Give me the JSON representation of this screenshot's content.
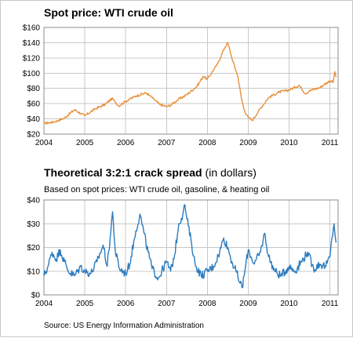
{
  "chart_data": [
    {
      "type": "line",
      "title": "Spot price: WTI crude oil",
      "subtitle": "",
      "xlabel": "",
      "ylabel": "",
      "x_tick_labels": [
        "2004",
        "2005",
        "2006",
        "2007",
        "2008",
        "2009",
        "2010",
        "2011"
      ],
      "y_tick_labels": [
        "$20",
        "$40",
        "$60",
        "$80",
        "$100",
        "$120",
        "$140",
        "$160"
      ],
      "xlim": [
        2004.0,
        2011.2
      ],
      "ylim": [
        20,
        160
      ],
      "grid": true,
      "series": [
        {
          "color": "#e8913a",
          "x": [
            2004.0,
            2004.25,
            2004.5,
            2004.75,
            2005.0,
            2005.25,
            2005.5,
            2005.67,
            2005.83,
            2006.0,
            2006.25,
            2006.5,
            2006.6,
            2006.83,
            2007.0,
            2007.1,
            2007.25,
            2007.5,
            2007.75,
            2007.9,
            2008.0,
            2008.25,
            2008.42,
            2008.5,
            2008.6,
            2008.75,
            2008.83,
            2008.9,
            2009.0,
            2009.1,
            2009.25,
            2009.5,
            2009.75,
            2010.0,
            2010.25,
            2010.4,
            2010.5,
            2010.75,
            2011.0,
            2011.08,
            2011.12,
            2011.15
          ],
          "values": [
            34,
            36,
            41,
            52,
            44,
            53,
            59,
            67,
            57,
            63,
            70,
            74,
            70,
            59,
            56,
            58,
            64,
            72,
            83,
            96,
            92,
            112,
            133,
            140,
            120,
            95,
            68,
            52,
            42,
            38,
            50,
            68,
            75,
            78,
            84,
            73,
            77,
            81,
            90,
            88,
            102,
            95
          ]
        }
      ]
    },
    {
      "type": "line",
      "title": "Theoretical 3:2:1 crack spread",
      "title_suffix": "(in dollars)",
      "subtitle": "Based on spot prices: WTI crude oil, gasoline, & heating oil",
      "xlabel": "",
      "ylabel": "",
      "x_tick_labels": [
        "2004",
        "2005",
        "2006",
        "2007",
        "2008",
        "2009",
        "2010",
        "2011"
      ],
      "y_tick_labels": [
        "$0",
        "$10",
        "$20",
        "$30",
        "$40"
      ],
      "xlim": [
        2004.0,
        2011.2
      ],
      "ylim": [
        0,
        40
      ],
      "grid": true,
      "series": [
        {
          "color": "#2b7bbf",
          "x": [
            2004.0,
            2004.1,
            2004.2,
            2004.3,
            2004.4,
            2004.5,
            2004.6,
            2004.75,
            2004.9,
            2005.0,
            2005.15,
            2005.3,
            2005.45,
            2005.55,
            2005.62,
            2005.68,
            2005.75,
            2005.85,
            2006.0,
            2006.1,
            2006.25,
            2006.35,
            2006.45,
            2006.55,
            2006.65,
            2006.8,
            2007.0,
            2007.1,
            2007.2,
            2007.3,
            2007.4,
            2007.45,
            2007.5,
            2007.6,
            2007.7,
            2007.85,
            2008.0,
            2008.15,
            2008.3,
            2008.4,
            2008.5,
            2008.6,
            2008.7,
            2008.8,
            2008.85,
            2008.9,
            2009.0,
            2009.15,
            2009.3,
            2009.4,
            2009.5,
            2009.65,
            2009.8,
            2010.0,
            2010.15,
            2010.3,
            2010.45,
            2010.6,
            2010.75,
            2010.9,
            2011.0,
            2011.05,
            2011.1,
            2011.15
          ],
          "values": [
            8,
            12,
            18,
            15,
            19,
            14,
            10,
            8,
            12,
            10,
            9,
            14,
            21,
            12,
            24,
            35,
            18,
            11,
            9,
            13,
            27,
            34,
            26,
            18,
            11,
            7,
            14,
            10,
            17,
            30,
            34,
            38,
            32,
            23,
            13,
            8,
            10,
            12,
            18,
            24,
            20,
            14,
            10,
            5,
            3,
            8,
            19,
            13,
            18,
            26,
            16,
            10,
            8,
            12,
            10,
            14,
            18,
            11,
            13,
            12,
            16,
            24,
            30,
            22
          ]
        }
      ]
    }
  ],
  "source_note": "Source: US Energy Information Administration"
}
